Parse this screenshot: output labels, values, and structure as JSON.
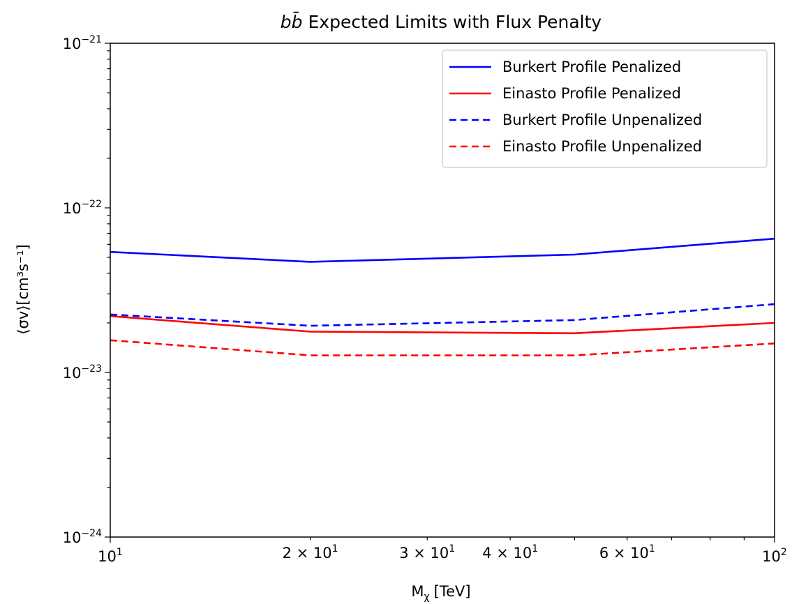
{
  "chart_data": {
    "type": "line",
    "title": "Expected Limits with Flux Penalty",
    "title_prefix": "bb̄",
    "xlabel": "[TeV]",
    "xlabel_symbol": "M",
    "xlabel_subscript": "χ",
    "ylabel": "⟨σv⟩[cm³s⁻¹]",
    "x_scale": "log",
    "y_scale": "log",
    "xlim": [
      10,
      100
    ],
    "ylim": [
      1e-24,
      1e-21
    ],
    "x": [
      10,
      20,
      50,
      100
    ],
    "x_major_ticks": [
      {
        "value": 10,
        "base": "10",
        "exp": "1"
      },
      {
        "value": 100,
        "base": "10",
        "exp": "2"
      }
    ],
    "x_minor_labeled": [
      {
        "value": 20,
        "mant": "2 × 10",
        "exp": "1"
      },
      {
        "value": 30,
        "mant": "3 × 10",
        "exp": "1"
      },
      {
        "value": 40,
        "mant": "4 × 10",
        "exp": "1"
      },
      {
        "value": 60,
        "mant": "6 × 10",
        "exp": "1"
      }
    ],
    "y_major_ticks": [
      {
        "value": 1e-24,
        "base": "10",
        "exp": "−24"
      },
      {
        "value": 1e-23,
        "base": "10",
        "exp": "−23"
      },
      {
        "value": 1e-22,
        "base": "10",
        "exp": "−22"
      },
      {
        "value": 1e-21,
        "base": "10",
        "exp": "−21"
      }
    ],
    "grid": false,
    "legend_position": "top-right",
    "series": [
      {
        "name": "Burkert Profile Penalized",
        "color": "#0000ff",
        "style": "solid",
        "values": [
          5.4e-23,
          4.7e-23,
          5.2e-23,
          6.5e-23
        ]
      },
      {
        "name": "Einasto Profile Penalized",
        "color": "#ff0000",
        "style": "solid",
        "values": [
          2.2e-23,
          1.77e-23,
          1.73e-23,
          2e-23
        ]
      },
      {
        "name": "Burkert Profile Unpenalized",
        "color": "#0000ff",
        "style": "dashed",
        "values": [
          2.25e-23,
          1.92e-23,
          2.08e-23,
          2.6e-23
        ]
      },
      {
        "name": "Einasto Profile Unpenalized",
        "color": "#ff0000",
        "style": "dashed",
        "values": [
          1.57e-23,
          1.27e-23,
          1.27e-23,
          1.5e-23
        ]
      }
    ]
  }
}
